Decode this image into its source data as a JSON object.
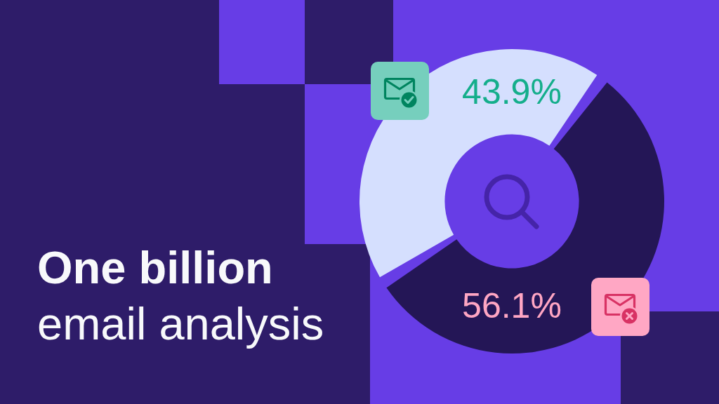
{
  "chart_data": {
    "type": "donut",
    "title": "One billion",
    "subtitle": "email analysis",
    "categories": [
      null,
      null
    ],
    "values": [
      43.9,
      56.1
    ],
    "colors": [
      "#d5dffe",
      "#241656"
    ],
    "value_labels": [
      "43.9%",
      "56.1%"
    ],
    "legend": false
  }
}
